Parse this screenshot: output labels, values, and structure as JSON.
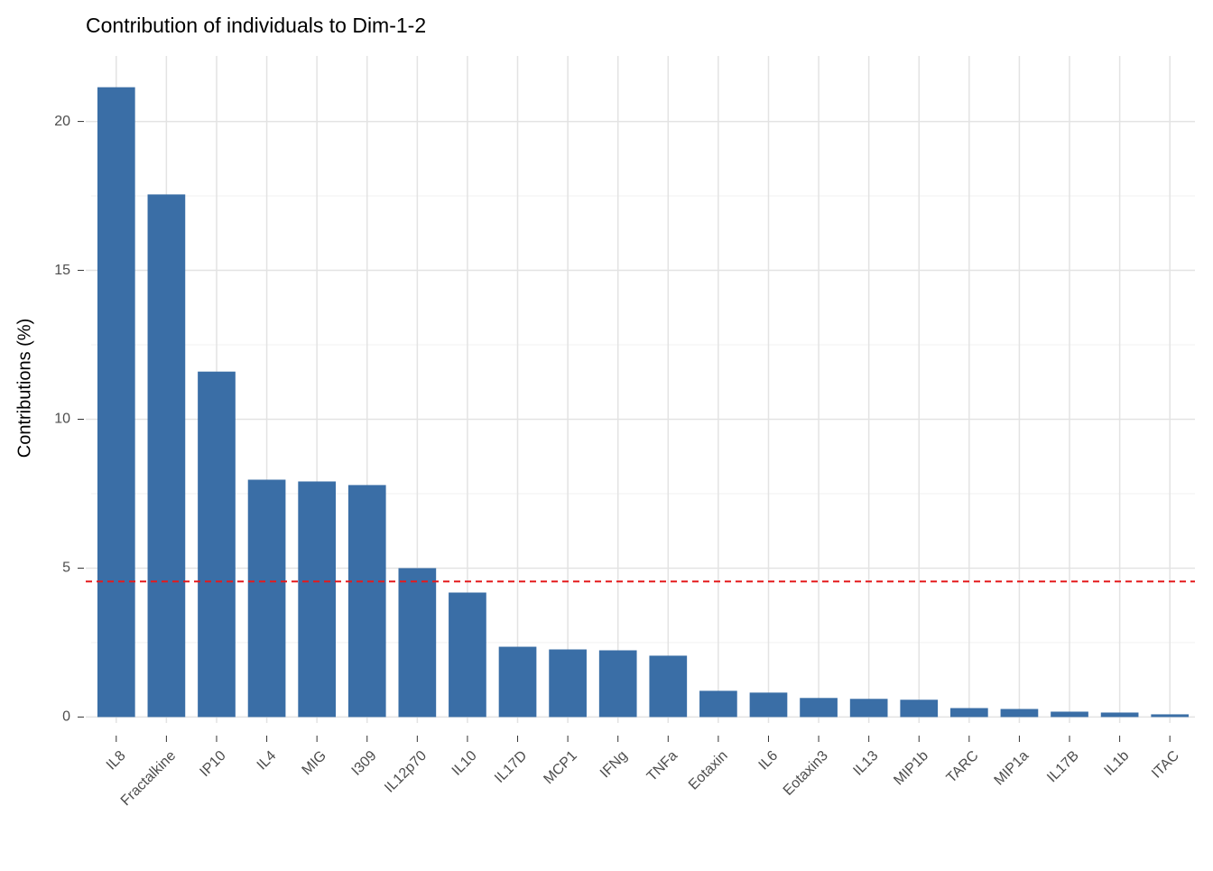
{
  "chart_data": {
    "type": "bar",
    "title": "Contribution of individuals to Dim-1-2",
    "y_label": "Contributions (%)",
    "categories": [
      "IL8",
      "Fractalkine",
      "IP10",
      "IL4",
      "MIG",
      "I309",
      "IL12p70",
      "IL10",
      "IL17D",
      "MCP1",
      "IFNg",
      "TNFa",
      "Eotaxin",
      "IL6",
      "Eotaxin3",
      "IL13",
      "MIP1b",
      "TARC",
      "MIP1a",
      "IL17B",
      "IL1b",
      "ITAC"
    ],
    "values": [
      21.15,
      17.55,
      11.6,
      7.97,
      7.91,
      7.79,
      5.0,
      4.18,
      2.36,
      2.27,
      2.24,
      2.06,
      0.88,
      0.82,
      0.64,
      0.61,
      0.58,
      0.3,
      0.27,
      0.18,
      0.15,
      0.09
    ],
    "color": "#3a6ea6",
    "reference_line": 4.55,
    "reference_color": "#e41a1c",
    "ylim": [
      -0.2,
      22.2
    ],
    "yticks": [
      0,
      5,
      10,
      15,
      20
    ],
    "y_minor_ticks": [
      2.5,
      7.5,
      12.5,
      17.5
    ],
    "grid": true
  }
}
